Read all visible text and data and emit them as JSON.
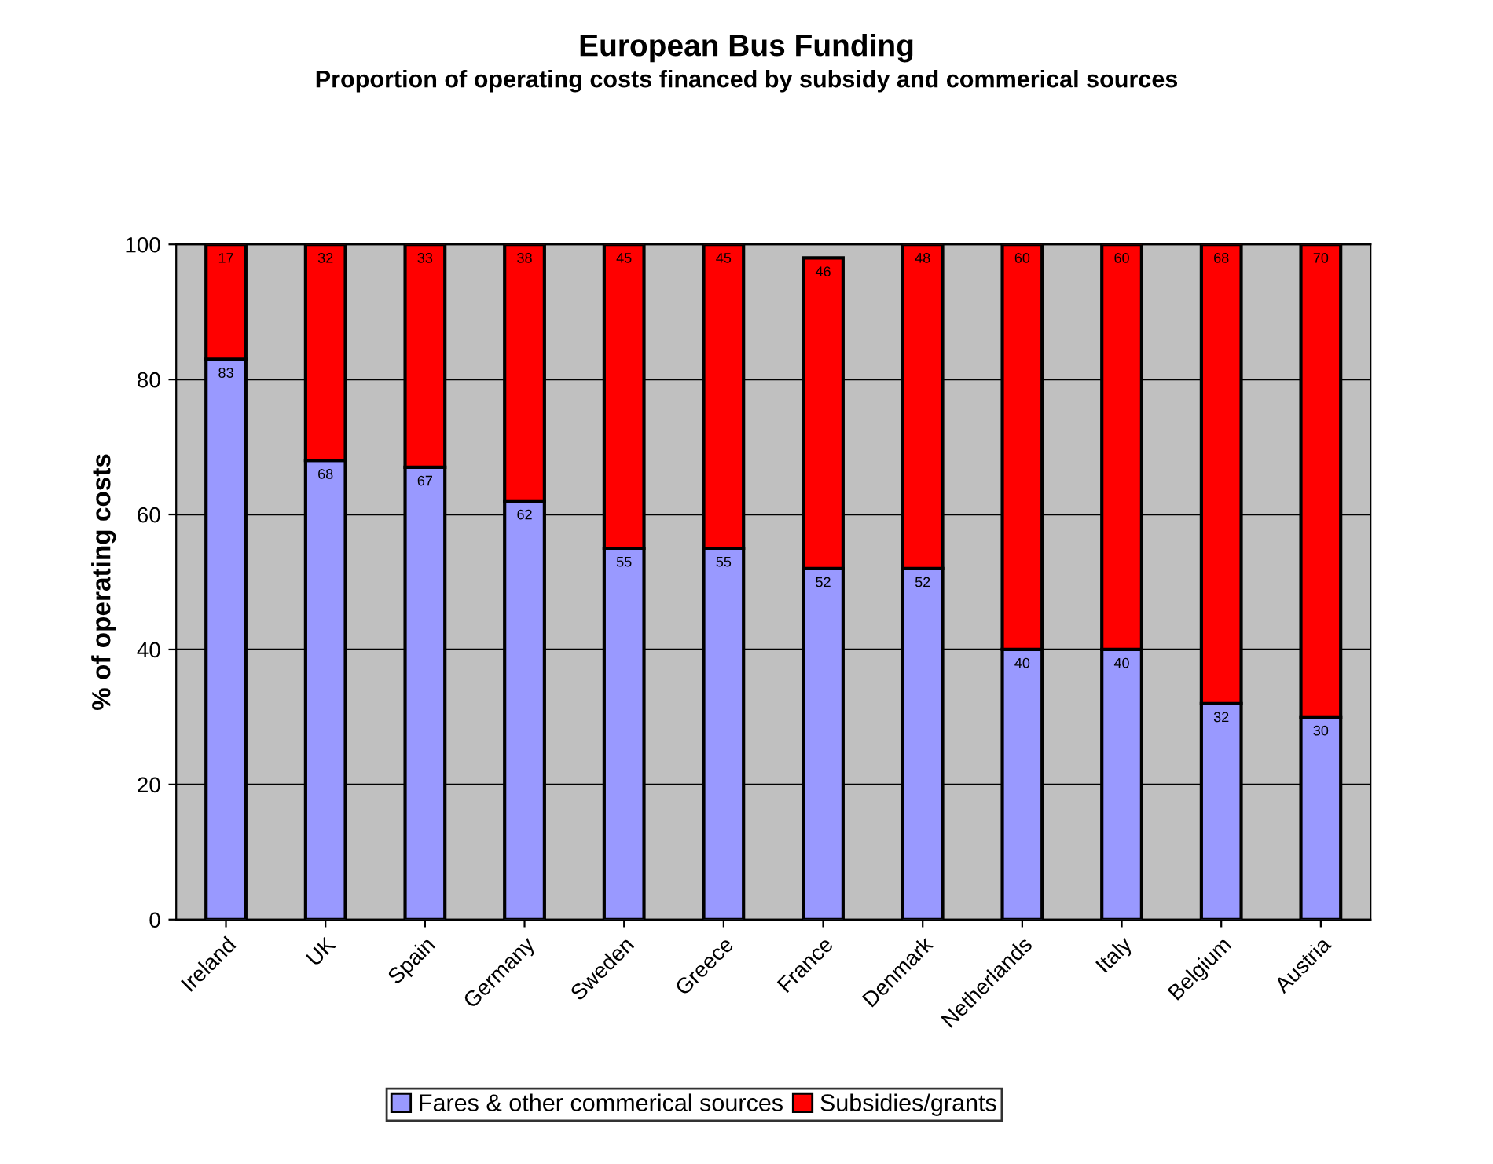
{
  "chart_data": {
    "type": "bar",
    "stacked": true,
    "title": "European Bus Funding",
    "subtitle": "Proportion of operating costs financed by subsidy and commerical sources",
    "ylabel": "% of operating costs",
    "categories": [
      "Ireland",
      "UK",
      "Spain",
      "Germany",
      "Sweden",
      "Greece",
      "France",
      "Denmark",
      "Netherlands",
      "Italy",
      "Belgium",
      "Austria"
    ],
    "series": [
      {
        "name": "Fares & other commerical sources",
        "color": "#9999ff",
        "values": [
          83,
          68,
          67,
          62,
          55,
          55,
          52,
          52,
          40,
          40,
          32,
          30
        ],
        "value_labels": [
          "83",
          "68",
          "67",
          "62",
          "55",
          "55",
          "52",
          "52",
          "40",
          "40",
          "32",
          "30"
        ]
      },
      {
        "name": "Subsidies/grants",
        "color": "#ff0000",
        "values": [
          17,
          32,
          33,
          38,
          45,
          45,
          46,
          48,
          60,
          60,
          68,
          70
        ],
        "value_labels": [
          "17",
          "32",
          "33",
          "38",
          "45",
          "45",
          "46",
          "48",
          "60",
          "60",
          "68",
          "70"
        ]
      }
    ],
    "ylim": [
      0,
      100
    ],
    "yticks": [
      0,
      20,
      40,
      60,
      80,
      100
    ],
    "grid": "y",
    "legend": "bottom"
  }
}
